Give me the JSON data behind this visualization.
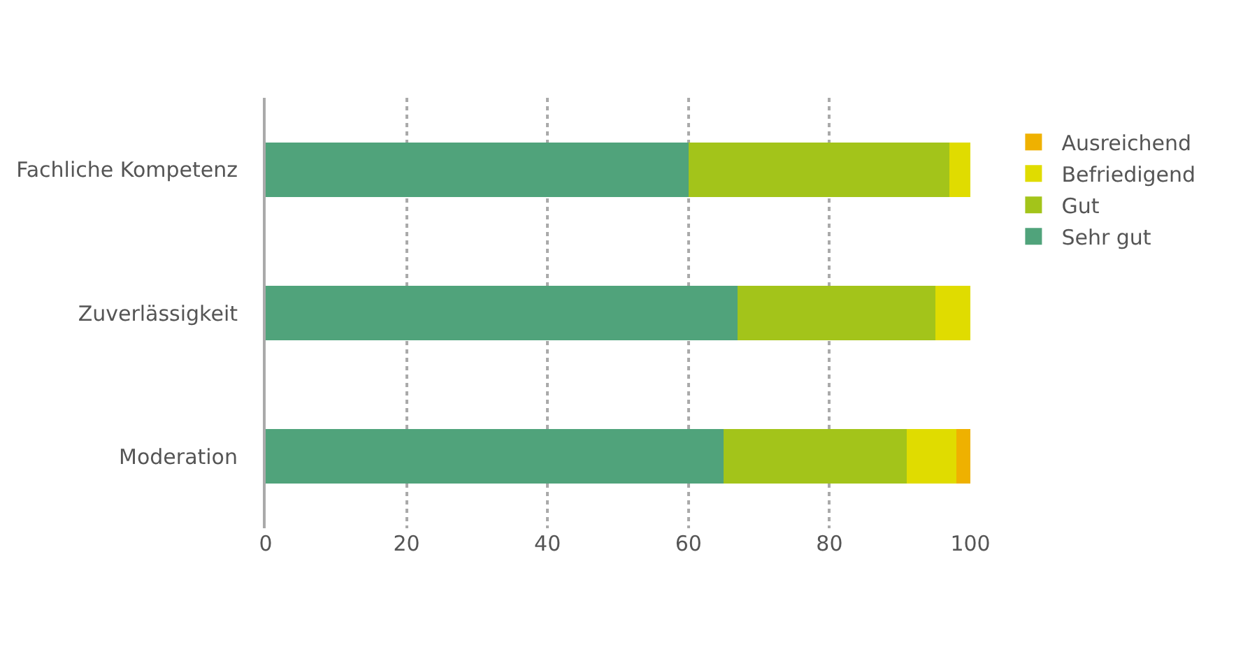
{
  "chart_data": {
    "type": "bar",
    "orientation": "horizontal",
    "stacked": true,
    "categories": [
      "Fachliche Kompetenz",
      "Zuverlässigkeit",
      "Moderation"
    ],
    "series": [
      {
        "name": "Sehr gut",
        "color": "#50a37b",
        "values": [
          60,
          67,
          65
        ]
      },
      {
        "name": "Gut",
        "color": "#a3c41a",
        "values": [
          37,
          28,
          26
        ]
      },
      {
        "name": "Befriedigend",
        "color": "#e0dc00",
        "values": [
          3,
          5,
          7
        ]
      },
      {
        "name": "Ausreichend",
        "color": "#efb100",
        "values": [
          0,
          0,
          2
        ]
      }
    ],
    "xlim": [
      0,
      100
    ],
    "xticks": [
      0,
      20,
      40,
      60,
      80,
      100
    ],
    "grid": "x",
    "legend": "right"
  }
}
